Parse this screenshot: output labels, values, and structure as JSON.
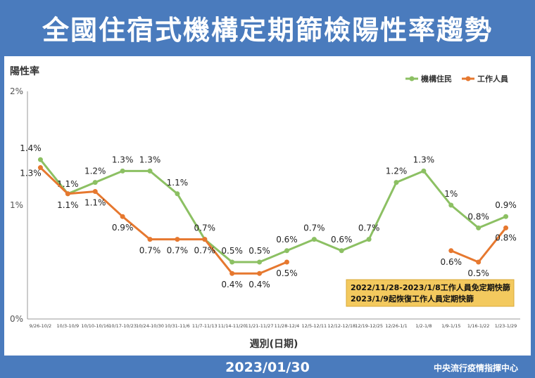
{
  "title": "全國住宿式機構定期篩檢陽性率趨勢",
  "footer": {
    "date": "2023/01/30",
    "agency": "中央流行疫情指揮中心"
  },
  "note": {
    "line1": "2022/11/28-2023/1/8工作人員免定期快篩",
    "line2": "2023/1/9起恢復工作人員定期快篩",
    "bg": "#f3c95e"
  },
  "chart_data": {
    "type": "line",
    "title": "全國住宿式機構定期篩檢陽性率趨勢",
    "ylabel": "陽性率",
    "xlabel": "週別(日期)",
    "ylim": [
      0,
      2
    ],
    "yticks": [
      "0%",
      "1%",
      "2%"
    ],
    "categories": [
      "9/26-10/2",
      "10/3-10/9",
      "10/10-10/16",
      "10/17-10/23",
      "10/24-10/30",
      "10/31-11/6",
      "11/7-11/13",
      "11/14-11/20",
      "11/21-11/27",
      "11/28-12/4",
      "12/5-12/11",
      "12/12-12/18",
      "12/19-12/25",
      "12/26-1/1",
      "1/2-1/8",
      "1/9-1/15",
      "1/16-1/22",
      "1/23-1/29"
    ],
    "legend_position": "top-right",
    "grid": false,
    "series": [
      {
        "name": "機構住民",
        "color": "#8cc063",
        "values": [
          1.4,
          1.1,
          1.2,
          1.3,
          1.3,
          1.1,
          0.7,
          0.5,
          0.5,
          0.6,
          0.7,
          0.6,
          0.7,
          1.2,
          1.3,
          1.0,
          0.8,
          0.9
        ],
        "labels": [
          "1.4%",
          "1.1%",
          "1.2%",
          "1.3%",
          "1.3%",
          "1.1%",
          "0.7%",
          "0.5%",
          "0.5%",
          "0.6%",
          "0.7%",
          "0.6%",
          "0.7%",
          "1.2%",
          "1.3%",
          "1%",
          "0.8%",
          "0.9%"
        ]
      },
      {
        "name": "工作人員",
        "color": "#e6782f",
        "values": [
          1.33,
          1.1,
          1.12,
          0.9,
          0.7,
          0.7,
          0.7,
          0.4,
          0.4,
          0.5,
          null,
          null,
          null,
          null,
          null,
          0.6,
          0.5,
          0.8
        ],
        "labels": [
          "1.3%",
          "1.1%",
          "1.1%",
          "0.9%",
          "0.7%",
          "0.7%",
          "0.7%",
          "0.4%",
          "0.4%",
          "0.5%",
          null,
          null,
          null,
          null,
          null,
          "0.6%",
          "0.5%",
          "0.8%"
        ]
      }
    ]
  }
}
